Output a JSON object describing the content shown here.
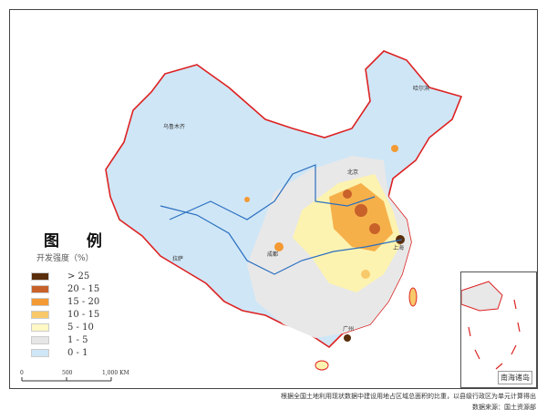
{
  "map": {
    "inset_label": "南海诸岛",
    "cities": [
      "乌鲁木齐",
      "拉萨",
      "哈尔滨",
      "北京",
      "上海",
      "成都",
      "广州"
    ]
  },
  "legend": {
    "title": "图 例",
    "subtitle": "开发强度（%）",
    "items": [
      {
        "label": "> 25",
        "color": "#5a2e0c"
      },
      {
        "label": "20 - 15",
        "color": "#c8612a"
      },
      {
        "label": "15 - 20",
        "color": "#f39a34"
      },
      {
        "label": "10 - 15",
        "color": "#f8c96a"
      },
      {
        "label": "5 - 10",
        "color": "#fdf8c4"
      },
      {
        "label": "1 - 5",
        "color": "#e6e6e6"
      },
      {
        "label": "0 - 1",
        "color": "#cfe6f6"
      }
    ]
  },
  "scale_bar": {
    "labels": [
      "0",
      "500",
      "1,000 KM"
    ]
  },
  "notes": {
    "method": "根据全国土地利用现状数据中建设用地占区域总面积的比重，以县级行政区为单元计算得出",
    "source": "数据来源：国土资源部"
  }
}
